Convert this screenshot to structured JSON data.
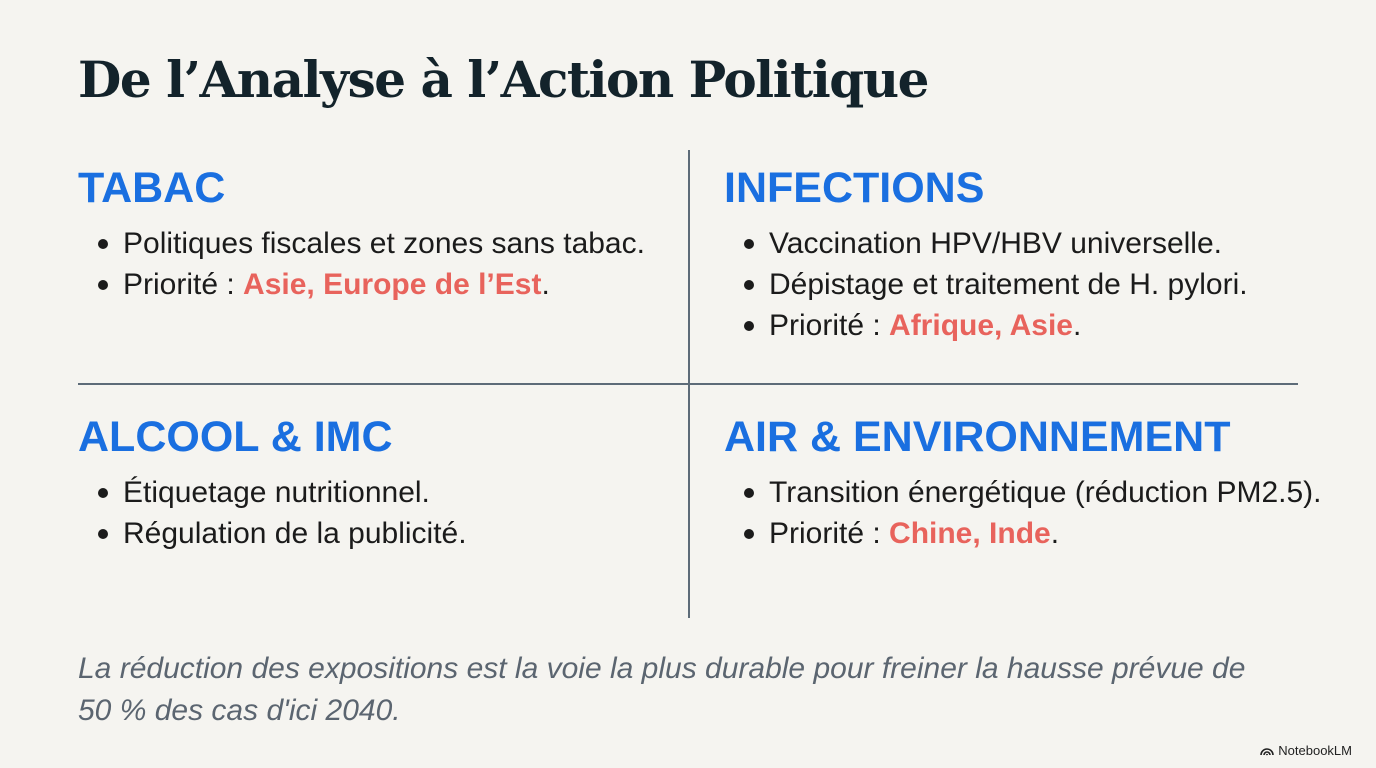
{
  "title": "De l’Analyse à l’Action Politique",
  "quadrants": [
    {
      "heading": "TABAC",
      "bullets": [
        {
          "text": "Politiques fiscales et zones sans tabac.",
          "highlight": "",
          "after": ""
        },
        {
          "text": "Priorité : ",
          "highlight": "Asie, Europe de l’Est",
          "after": "."
        }
      ]
    },
    {
      "heading": "INFECTIONS",
      "bullets": [
        {
          "text": "Vaccination HPV/HBV universelle.",
          "highlight": "",
          "after": ""
        },
        {
          "text": "Dépistage et traitement de H. pylori.",
          "highlight": "",
          "after": ""
        },
        {
          "text": "Priorité : ",
          "highlight": "Afrique, Asie",
          "after": "."
        }
      ]
    },
    {
      "heading": "ALCOOL & IMC",
      "bullets": [
        {
          "text": "Étiquetage nutritionnel.",
          "highlight": "",
          "after": ""
        },
        {
          "text": "Régulation de la publicité.",
          "highlight": "",
          "after": ""
        }
      ]
    },
    {
      "heading": "AIR & ENVIRONNEMENT",
      "bullets": [
        {
          "text": "Transition énergétique (réduction PM2.5).",
          "highlight": "",
          "after": ""
        },
        {
          "text": "Priorité : ",
          "highlight": "Chine, Inde",
          "after": "."
        }
      ]
    }
  ],
  "footer": "La réduction des expositions est la voie la plus durable pour freiner la hausse prévue de 50 % des cas d'ici 2040.",
  "brand": "NotebookLM",
  "colors": {
    "heading": "#1a6fe0",
    "highlight": "#e8635c",
    "background": "#f5f4f0"
  }
}
